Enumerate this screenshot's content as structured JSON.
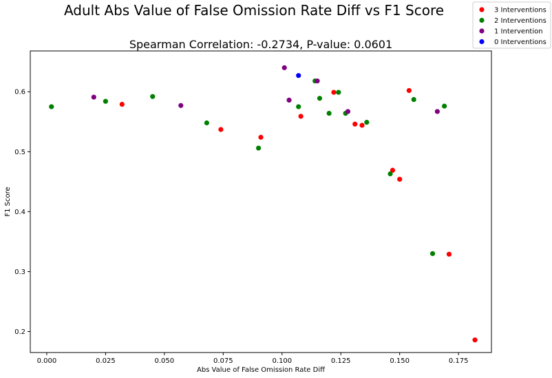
{
  "chart_data": {
    "type": "scatter",
    "title": "Adult Abs Value of False Omission Rate Diff vs F1 Score",
    "subtitle": "Spearman Correlation: -0.2734, P-value: 0.0601",
    "xlabel": "Abs Value of False Omission Rate Diff",
    "ylabel": "F1 Score",
    "xlim": [
      -0.007,
      0.189
    ],
    "ylim": [
      0.165,
      0.668
    ],
    "xticks": [
      0.0,
      0.025,
      0.05,
      0.075,
      0.1,
      0.125,
      0.15,
      0.175
    ],
    "xtick_labels": [
      "0.000",
      "0.025",
      "0.050",
      "0.075",
      "0.100",
      "0.125",
      "0.150",
      "0.175"
    ],
    "yticks": [
      0.2,
      0.3,
      0.4,
      0.5,
      0.6
    ],
    "ytick_labels": [
      "0.2",
      "0.3",
      "0.4",
      "0.5",
      "0.6"
    ],
    "grid": false,
    "legend_position": "top-right",
    "series": [
      {
        "name": "3 Interventions",
        "color": "#ff0000",
        "points": [
          {
            "x": 0.032,
            "y": 0.579
          },
          {
            "x": 0.074,
            "y": 0.537
          },
          {
            "x": 0.091,
            "y": 0.524
          },
          {
            "x": 0.108,
            "y": 0.559
          },
          {
            "x": 0.122,
            "y": 0.599
          },
          {
            "x": 0.131,
            "y": 0.546
          },
          {
            "x": 0.134,
            "y": 0.544
          },
          {
            "x": 0.147,
            "y": 0.469
          },
          {
            "x": 0.15,
            "y": 0.454
          },
          {
            "x": 0.154,
            "y": 0.602
          },
          {
            "x": 0.171,
            "y": 0.329
          },
          {
            "x": 0.182,
            "y": 0.186
          }
        ]
      },
      {
        "name": "2 Interventions",
        "color": "#008000",
        "points": [
          {
            "x": 0.002,
            "y": 0.575
          },
          {
            "x": 0.025,
            "y": 0.584
          },
          {
            "x": 0.045,
            "y": 0.592
          },
          {
            "x": 0.068,
            "y": 0.548
          },
          {
            "x": 0.09,
            "y": 0.506
          },
          {
            "x": 0.107,
            "y": 0.575
          },
          {
            "x": 0.114,
            "y": 0.618
          },
          {
            "x": 0.116,
            "y": 0.589
          },
          {
            "x": 0.12,
            "y": 0.564
          },
          {
            "x": 0.124,
            "y": 0.599
          },
          {
            "x": 0.127,
            "y": 0.564
          },
          {
            "x": 0.136,
            "y": 0.549
          },
          {
            "x": 0.146,
            "y": 0.463
          },
          {
            "x": 0.156,
            "y": 0.587
          },
          {
            "x": 0.164,
            "y": 0.33
          },
          {
            "x": 0.169,
            "y": 0.576
          }
        ]
      },
      {
        "name": "1 Intervention",
        "color": "#800080",
        "points": [
          {
            "x": 0.02,
            "y": 0.591
          },
          {
            "x": 0.057,
            "y": 0.577
          },
          {
            "x": 0.101,
            "y": 0.64
          },
          {
            "x": 0.103,
            "y": 0.586
          },
          {
            "x": 0.115,
            "y": 0.618
          },
          {
            "x": 0.128,
            "y": 0.567
          },
          {
            "x": 0.166,
            "y": 0.567
          }
        ]
      },
      {
        "name": "0 Interventions",
        "color": "#0000ff",
        "points": [
          {
            "x": 0.107,
            "y": 0.627
          }
        ]
      }
    ]
  }
}
